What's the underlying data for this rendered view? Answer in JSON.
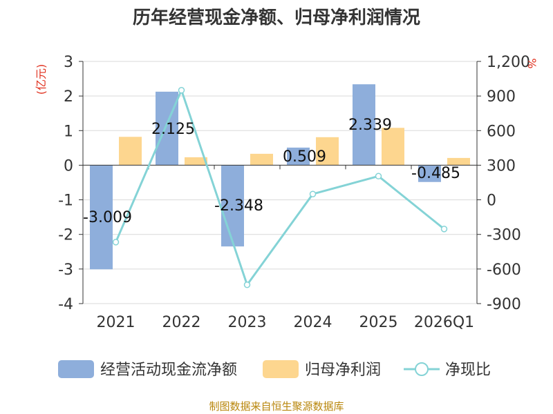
{
  "chart_data": {
    "type": "bar+line",
    "title": "历年经营现金净额、归母净利润情况",
    "categories": [
      "2021",
      "2022",
      "2023",
      "2024",
      "2025",
      "2026Q1"
    ],
    "series": [
      {
        "name": "经营活动现金流净额",
        "kind": "bar",
        "axis": "left",
        "values": [
          -3.009,
          2.125,
          -2.348,
          0.509,
          2.339,
          -0.485
        ],
        "color": "#8eaedb"
      },
      {
        "name": "归母净利润",
        "kind": "bar",
        "axis": "left",
        "values": [
          0.82,
          0.23,
          0.33,
          0.81,
          1.08,
          0.21
        ],
        "color": "#fdd68f"
      },
      {
        "name": "净现比",
        "kind": "line",
        "axis": "right",
        "values": [
          -367,
          950,
          -737,
          50,
          205,
          -253
        ],
        "color": "#84d3d6"
      }
    ],
    "data_labels": [
      "-3.009",
      "2.125",
      "-2.348",
      "0.509",
      "2.339",
      "-0.485"
    ],
    "left_axis": {
      "label": "(亿元)",
      "ylim": [
        -4,
        3
      ],
      "ticks": [
        "-4",
        "-3",
        "-2",
        "-1",
        "0",
        "1",
        "2",
        "3"
      ]
    },
    "right_axis": {
      "label": "%",
      "ylim": [
        -900,
        1200
      ],
      "ticks": [
        "-900",
        "-600",
        "-300",
        "0",
        "300",
        "600",
        "900",
        "1,200"
      ]
    },
    "grid": true,
    "legend_position": "bottom",
    "source": "制图数据来自恒生聚源数据库"
  }
}
